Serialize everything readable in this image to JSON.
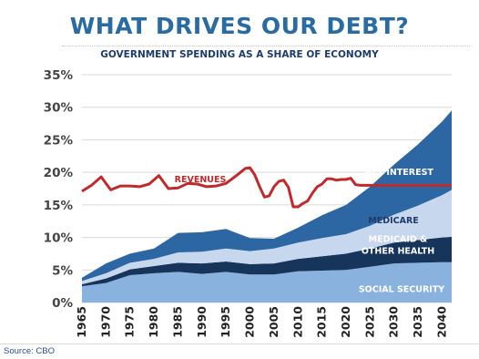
{
  "header": {
    "title": "WHAT DRIVES OUR DEBT?",
    "subtitle": "GOVERNMENT SPENDING AS A SHARE OF ECONOMY"
  },
  "source": "Source: CBO",
  "colors": {
    "title": "#2a6ba1",
    "social_security": "#8ab2df",
    "medicaid": "#17355a",
    "medicare": "#c7d8ee",
    "net_interest": "#2c66a3",
    "revenues": "#bf2a2c"
  },
  "chart_data": {
    "type": "area",
    "stacked": true,
    "title": "WHAT DRIVES OUR DEBT?",
    "subtitle": "GOVERNMENT SPENDING AS A SHARE OF ECONOMY",
    "unit": "%",
    "ylim": [
      0,
      35
    ],
    "yticks": [
      "0%",
      "5%",
      "10%",
      "15%",
      "20%",
      "25%",
      "30%",
      "35%"
    ],
    "xlim": [
      1965,
      2042
    ],
    "xticks": [
      "1965",
      "1970",
      "1975",
      "1980",
      "1985",
      "1990",
      "1995",
      "2000",
      "2005",
      "2010",
      "2015",
      "2020",
      "2025",
      "2030",
      "2035",
      "2040"
    ],
    "grid": "horizontal",
    "x": [
      1965,
      1970,
      1975,
      1980,
      1985,
      1990,
      1995,
      2000,
      2005,
      2010,
      2015,
      2020,
      2025,
      2030,
      2035,
      2040,
      2042
    ],
    "series": [
      {
        "name": "SOCIAL SECURITY",
        "values": [
          2.5,
          3.0,
          4.2,
          4.5,
          4.7,
          4.4,
          4.7,
          4.3,
          4.3,
          4.8,
          4.9,
          5.0,
          5.5,
          6.0,
          6.1,
          6.2,
          6.2
        ]
      },
      {
        "name": "MEDICAID & OTHER HEALTH",
        "values": [
          0.3,
          0.7,
          0.9,
          1.1,
          1.4,
          1.6,
          1.6,
          1.6,
          1.7,
          1.9,
          2.2,
          2.5,
          2.8,
          3.2,
          3.5,
          3.8,
          3.9
        ]
      },
      {
        "name": "MEDICARE",
        "values": [
          0.5,
          0.8,
          1.0,
          1.1,
          1.6,
          1.8,
          2.0,
          2.0,
          2.3,
          2.5,
          2.8,
          3.0,
          3.5,
          4.3,
          5.3,
          6.5,
          7.2
        ]
      },
      {
        "name": "NET INTEREST",
        "values": [
          0.5,
          1.5,
          1.4,
          1.6,
          3.0,
          3.0,
          3.0,
          2.0,
          1.5,
          2.3,
          3.5,
          4.5,
          6.0,
          7.7,
          9.4,
          11.3,
          12.2
        ]
      }
    ],
    "revenues": {
      "name": "REVENUES",
      "x": [
        1965,
        1967,
        1969,
        1971,
        1973,
        1975,
        1977,
        1979,
        1981,
        1983,
        1985,
        1987,
        1989,
        1991,
        1993,
        1995,
        1997,
        1999,
        2000,
        2001,
        2002,
        2003,
        2004,
        2005,
        2006,
        2007,
        2008,
        2009,
        2010,
        2011,
        2012,
        2013,
        2014,
        2015,
        2016,
        2017,
        2018,
        2019,
        2020,
        2021,
        2022,
        2023,
        2025,
        2030,
        2035,
        2042
      ],
      "values": [
        17.1,
        18.0,
        19.3,
        17.3,
        17.9,
        17.9,
        17.8,
        18.2,
        19.5,
        17.5,
        17.6,
        18.3,
        18.2,
        17.8,
        17.9,
        18.3,
        19.4,
        20.6,
        20.7,
        19.6,
        17.8,
        16.2,
        16.4,
        17.8,
        18.6,
        18.8,
        17.7,
        14.7,
        14.7,
        15.2,
        15.6,
        16.8,
        17.8,
        18.2,
        19.0,
        19.0,
        18.8,
        18.9,
        18.9,
        19.1,
        18.1,
        18.0,
        18.0,
        18.0,
        18.0,
        18.0
      ]
    }
  }
}
